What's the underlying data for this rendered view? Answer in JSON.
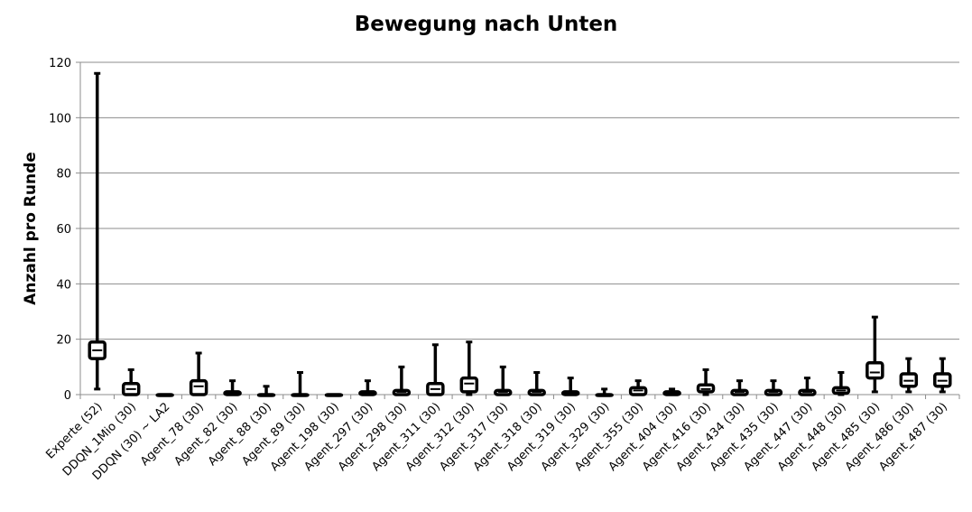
{
  "chart_data": {
    "type": "box",
    "title": "Bewegung nach Unten",
    "xlabel": "",
    "ylabel": "Anzahl pro Runde",
    "ylim": [
      0,
      120
    ],
    "yticks": [
      "0",
      "20",
      "40",
      "60",
      "80",
      "100",
      "120"
    ],
    "grid": true,
    "legend": "none",
    "categories": [
      "Experte (52)",
      "DDQN_1Mio (30)",
      "DDQN (30) ~ LA2",
      "Agent_78 (30)",
      "Agent_82 (30)",
      "Agent_88 (30)",
      "Agent_89 (30)",
      "Agent_198 (30)",
      "Agent_297 (30)",
      "Agent_298 (30)",
      "Agent_311 (30)",
      "Agent_312 (30)",
      "Agent_317 (30)",
      "Agent_318 (30)",
      "Agent_319 (30)",
      "Agent_329 (30)",
      "Agent_355 (30)",
      "Agent_404 (30)",
      "Agent_416 (30)",
      "Agent_434 (30)",
      "Agent_435 (30)",
      "Agent_447 (30)",
      "Agent_448 (30)",
      "Agent_485 (30)",
      "Agent_486 (30)",
      "Agent_487 (30)"
    ],
    "boxes": [
      {
        "min": 2,
        "q1": 13,
        "median": 16,
        "q3": 19,
        "max": 116
      },
      {
        "min": 0,
        "q1": 0,
        "median": 2,
        "q3": 4,
        "max": 9
      },
      {
        "min": 0,
        "q1": 0,
        "median": 0,
        "q3": 0,
        "max": 0
      },
      {
        "min": 0,
        "q1": 0,
        "median": 3,
        "q3": 5,
        "max": 15
      },
      {
        "min": 0,
        "q1": 0,
        "median": 0,
        "q3": 1,
        "max": 5
      },
      {
        "min": 0,
        "q1": 0,
        "median": 0,
        "q3": 0,
        "max": 3
      },
      {
        "min": 0,
        "q1": 0,
        "median": 0,
        "q3": 0,
        "max": 8
      },
      {
        "min": 0,
        "q1": 0,
        "median": 0,
        "q3": 0,
        "max": 0
      },
      {
        "min": 0,
        "q1": 0,
        "median": 0,
        "q3": 1,
        "max": 5
      },
      {
        "min": 0,
        "q1": 0,
        "median": 1,
        "q3": 1.5,
        "max": 10
      },
      {
        "min": 0,
        "q1": 0,
        "median": 2,
        "q3": 4,
        "max": 18
      },
      {
        "min": 0,
        "q1": 1,
        "median": 4,
        "q3": 6,
        "max": 19
      },
      {
        "min": 0,
        "q1": 0,
        "median": 1,
        "q3": 1.5,
        "max": 10
      },
      {
        "min": 0,
        "q1": 0,
        "median": 1,
        "q3": 1.5,
        "max": 8
      },
      {
        "min": 0,
        "q1": 0,
        "median": 0,
        "q3": 1,
        "max": 6
      },
      {
        "min": 0,
        "q1": 0,
        "median": 0,
        "q3": 0,
        "max": 2
      },
      {
        "min": 0,
        "q1": 0,
        "median": 1.5,
        "q3": 2.5,
        "max": 5
      },
      {
        "min": 0,
        "q1": 0,
        "median": 0.5,
        "q3": 1,
        "max": 2
      },
      {
        "min": 0,
        "q1": 1,
        "median": 2,
        "q3": 3.5,
        "max": 9
      },
      {
        "min": 0,
        "q1": 0,
        "median": 1,
        "q3": 1.5,
        "max": 5
      },
      {
        "min": 0,
        "q1": 0,
        "median": 1,
        "q3": 1.5,
        "max": 5
      },
      {
        "min": 0,
        "q1": 0,
        "median": 1,
        "q3": 1.5,
        "max": 6
      },
      {
        "min": 0,
        "q1": 0.5,
        "median": 1.5,
        "q3": 2.5,
        "max": 8
      },
      {
        "min": 1,
        "q1": 6,
        "median": 8,
        "q3": 11.5,
        "max": 28
      },
      {
        "min": 1,
        "q1": 3,
        "median": 5,
        "q3": 7.5,
        "max": 13
      },
      {
        "min": 1,
        "q1": 3,
        "median": 5,
        "q3": 7.5,
        "max": 13
      }
    ]
  }
}
